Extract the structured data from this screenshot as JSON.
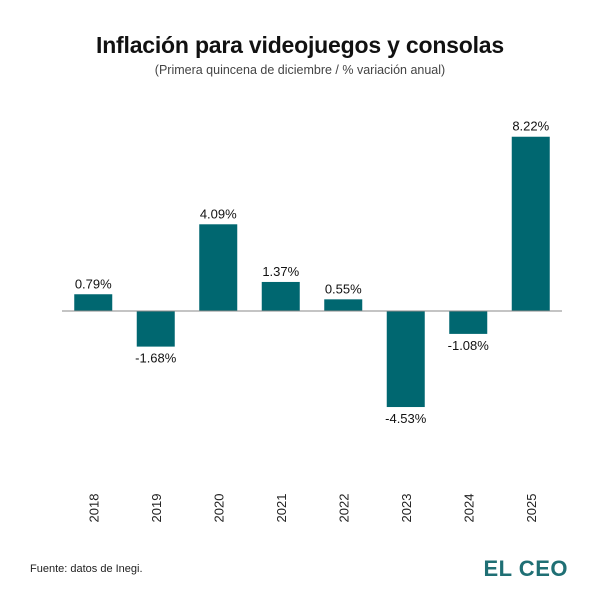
{
  "brand": {
    "name": "EL CEO",
    "color": "#1f6f74"
  },
  "source": "Fuente: datos de Inegi.",
  "chart_data": {
    "type": "bar",
    "title": "Inflación para videojuegos y consolas",
    "subtitle": "(Primera quincena de diciembre / % variación anual)",
    "categories": [
      "2018",
      "2019",
      "2020",
      "2021",
      "2022",
      "2023",
      "2024",
      "2025"
    ],
    "values": [
      0.79,
      -1.68,
      4.09,
      1.37,
      0.55,
      -4.53,
      -1.08,
      8.22
    ],
    "value_labels": [
      "0.79%",
      "-1.68%",
      "4.09%",
      "1.37%",
      "0.55%",
      "-4.53%",
      "-1.08%",
      "8.22%"
    ],
    "xlabel": "",
    "ylabel": "",
    "ylim": [
      -4.53,
      8.22
    ],
    "grid": false,
    "bar_color": "#006770",
    "axis_color": "#888888"
  }
}
